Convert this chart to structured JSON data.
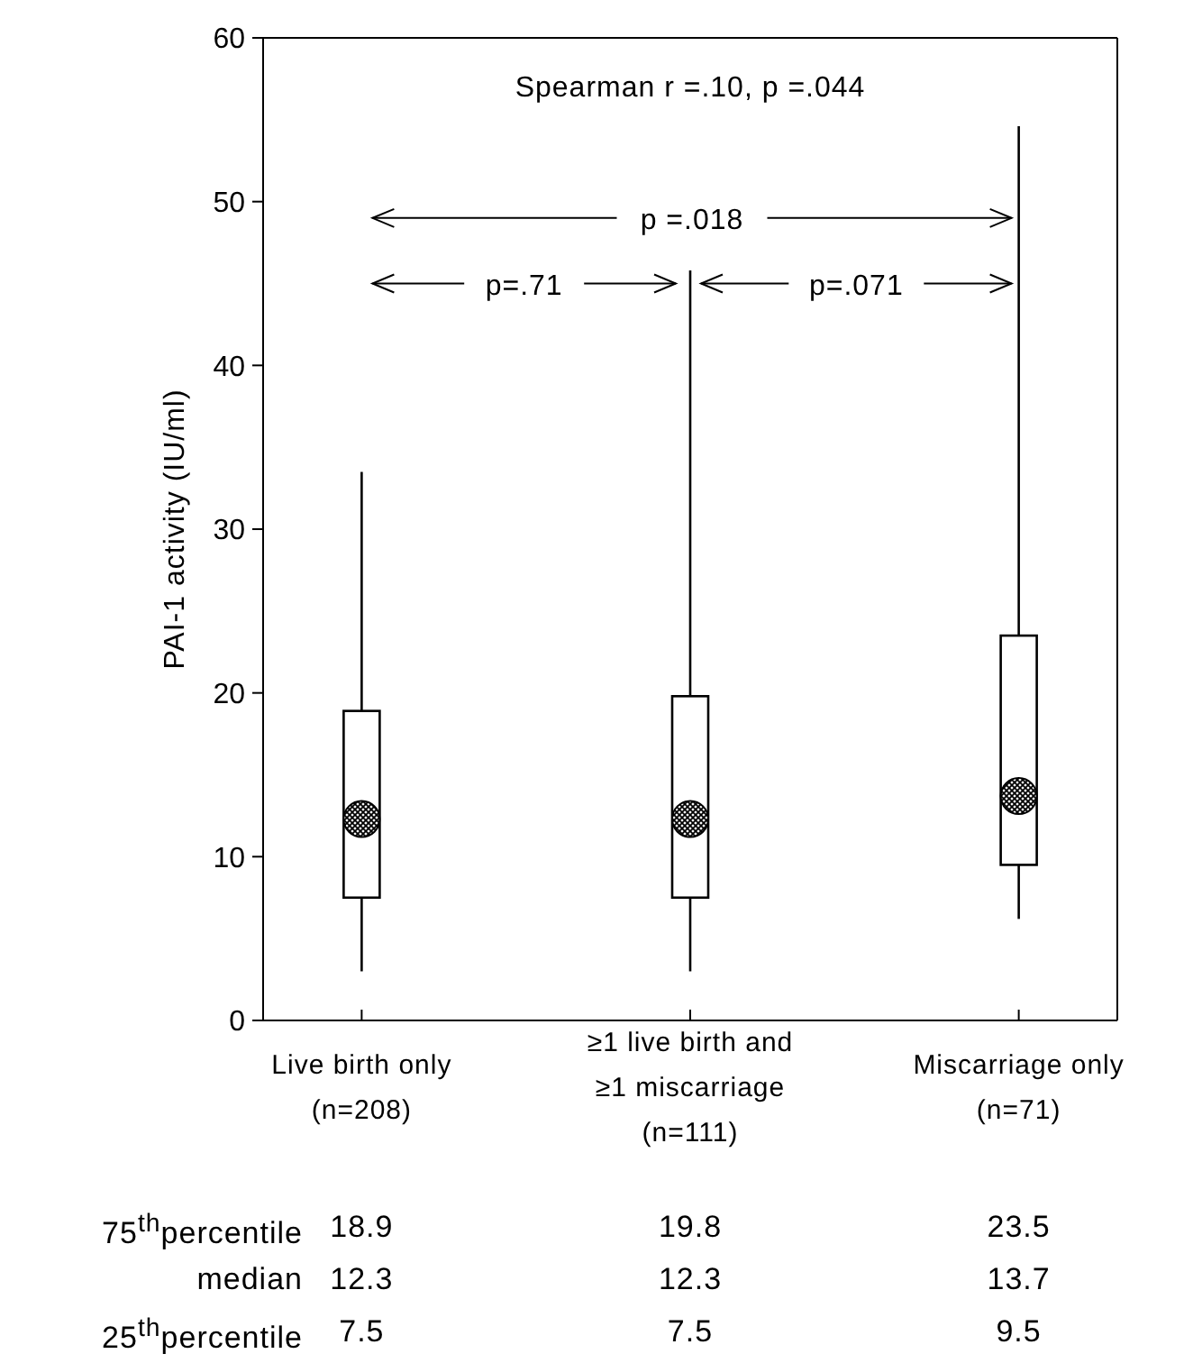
{
  "chart_data": {
    "type": "box",
    "ylabel": "PAI-1 activity (IU/ml)",
    "categories": [
      "Live birth only\n(n=208)",
      "≥1 live birth and\n≥1 miscarriage\n(n=111)",
      "Miscarriage only\n(n=71)"
    ],
    "color": "#000000",
    "boxes": [
      {
        "low": 3.0,
        "q1": 7.5,
        "median": 12.3,
        "q3": 18.9,
        "high": 33.5
      },
      {
        "low": 3.0,
        "q1": 7.5,
        "median": 12.3,
        "q3": 19.8,
        "high": 45.8
      },
      {
        "low": 6.2,
        "q1": 9.5,
        "median": 13.7,
        "q3": 23.5,
        "high": 54.6
      }
    ],
    "ylim": [
      0,
      60
    ],
    "yticks": [
      0,
      10,
      20,
      30,
      40,
      50,
      60
    ],
    "value_labels": [
      [
        "18.9",
        "19.8",
        "23.5"
      ],
      [
        "12.3",
        "12.3",
        "13.7"
      ],
      [
        "7.5",
        "7.5",
        "9.5"
      ]
    ],
    "annotations": [
      "Spearman r =.10, p =.044",
      {
        "text": "p =.018",
        "x": "Miscarriage only\n(n=71)",
        "y": 49
      },
      "p=.71",
      {
        "text": "p=.071",
        "x": "Miscarriage only\n(n=71)",
        "y": 45
      },
      "75$^{th}$percentile",
      "median",
      "25$^{th}$percentile"
    ]
  }
}
